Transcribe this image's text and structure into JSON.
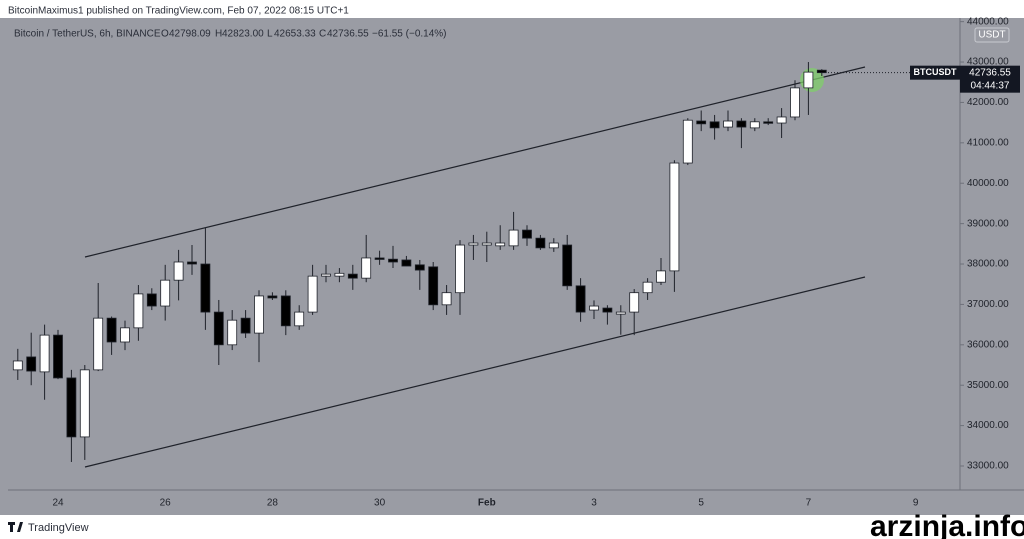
{
  "chart_data": {
    "type": "candlestick",
    "header": "BitcoinMaximus1 published on TradingView.com, Feb 07, 2022 08:15 UTC+1",
    "legend": {
      "symbol": "Bitcoin / TetherUS, 6h, BINANCE",
      "o_label": "O",
      "o": "42798.09",
      "h_label": "H",
      "h": "42823.00",
      "l_label": "L",
      "l": "42653.33",
      "c_label": "C",
      "c": "42736.55",
      "change": "−61.55 (−0.14%)"
    },
    "currency": "USDT",
    "ticker": "BTCUSDT",
    "last_price": {
      "value": 42736.55,
      "label": "42736.55"
    },
    "countdown": "04:44:37",
    "branding": "TradingView",
    "watermark": "arzinja.info",
    "categories": [
      null,
      null,
      null,
      "24",
      null,
      null,
      null,
      null,
      null,
      null,
      null,
      "26",
      null,
      null,
      null,
      null,
      null,
      null,
      null,
      "28",
      null,
      null,
      null,
      null,
      null,
      null,
      null,
      "30",
      null,
      null,
      null,
      null,
      null,
      null,
      null,
      "Feb",
      null,
      null,
      null,
      null,
      null,
      null,
      null,
      "3",
      null,
      null,
      null,
      null,
      null,
      null,
      null,
      "5",
      null,
      null,
      null,
      null,
      null,
      null,
      null,
      "7",
      null,
      null,
      null,
      null,
      null,
      null,
      null,
      "9"
    ],
    "up_color": "#ffffff",
    "down_color": "#000000",
    "wick_color": "#1f222a",
    "open": [
      35380,
      35700,
      35330,
      36240,
      35180,
      33720,
      35380,
      36660,
      36070,
      36420,
      37260,
      36960,
      37600,
      38050,
      38000,
      36810,
      36000,
      36660,
      36290,
      37210,
      37210,
      36470,
      36810,
      37700,
      37700,
      37750,
      37650,
      38150,
      38120,
      38100,
      37980,
      37930,
      36990,
      37290,
      38470,
      38470,
      38450,
      38450,
      38840,
      38640,
      38400,
      38470,
      37460,
      36860,
      36910,
      36760,
      36810,
      37290,
      37550,
      37830,
      40500,
      41540,
      41520,
      41390,
      41540,
      41370,
      41520,
      41490,
      41640,
      42360,
      42798.09,
      null,
      null,
      null,
      null,
      null,
      null,
      null
    ],
    "high": [
      35900,
      36300,
      36500,
      36370,
      35380,
      35500,
      37530,
      36700,
      36600,
      37480,
      37400,
      37980,
      38350,
      38470,
      38900,
      37110,
      36860,
      36860,
      37350,
      37300,
      37350,
      36980,
      37980,
      37980,
      37900,
      37980,
      38720,
      38330,
      38450,
      38200,
      38100,
      38050,
      37480,
      38590,
      38720,
      38800,
      38960,
      39290,
      38960,
      38720,
      38640,
      38720,
      37650,
      37100,
      36980,
      36980,
      37380,
      37650,
      38150,
      40570,
      41610,
      41800,
      41690,
      41800,
      41610,
      41610,
      41610,
      41860,
      42550,
      43000,
      42823,
      null,
      null,
      null,
      null,
      null,
      null,
      null
    ],
    "low": [
      35130,
      35000,
      34640,
      35150,
      33100,
      33150,
      35350,
      35750,
      35870,
      36100,
      36860,
      36600,
      37100,
      37730,
      36370,
      35500,
      35870,
      36170,
      35570,
      37110,
      36240,
      36370,
      36740,
      37550,
      37550,
      37360,
      37550,
      37980,
      37900,
      37950,
      37360,
      36860,
      36740,
      36740,
      38100,
      38050,
      38350,
      38350,
      38450,
      38350,
      38300,
      37360,
      36570,
      36640,
      36500,
      36250,
      36240,
      37110,
      37480,
      37310,
      40450,
      41290,
      41080,
      41290,
      40870,
      41290,
      41440,
      41120,
      41560,
      41690,
      42653.33,
      null,
      null,
      null,
      null,
      null,
      null,
      null
    ],
    "close": [
      35600,
      35350,
      36240,
      35180,
      33720,
      35380,
      36660,
      36070,
      36420,
      37260,
      36960,
      37600,
      38050,
      38000,
      36810,
      36000,
      36610,
      36290,
      37210,
      37160,
      36470,
      36810,
      37700,
      37750,
      37770,
      37650,
      38150,
      38120,
      38050,
      37950,
      37850,
      36990,
      37290,
      38470,
      38520,
      38520,
      38520,
      38840,
      38640,
      38400,
      38520,
      37460,
      36810,
      36960,
      36810,
      36810,
      37290,
      37550,
      37830,
      40500,
      41560,
      41470,
      41370,
      41540,
      41390,
      41520,
      41490,
      41640,
      42360,
      42750,
      42736.55,
      null,
      null,
      null,
      null,
      null,
      null,
      null
    ],
    "ylim": [
      32406,
      44090
    ],
    "yticks": [
      {
        "value": 33000,
        "label": "33000.00"
      },
      {
        "value": 34000,
        "label": "34000.00"
      },
      {
        "value": 35000,
        "label": "35000.00"
      },
      {
        "value": 36000,
        "label": "36000.00"
      },
      {
        "value": 37000,
        "label": "37000.00"
      },
      {
        "value": 38000,
        "label": "38000.00"
      },
      {
        "value": 39000,
        "label": "39000.00"
      },
      {
        "value": 40000,
        "label": "40000.00"
      },
      {
        "value": 41000,
        "label": "41000.00"
      },
      {
        "value": 42000,
        "label": "42000.00"
      },
      {
        "value": 43000,
        "label": "43000.00"
      },
      {
        "value": 44000,
        "label": "44000.00"
      }
    ],
    "grid": false
  }
}
